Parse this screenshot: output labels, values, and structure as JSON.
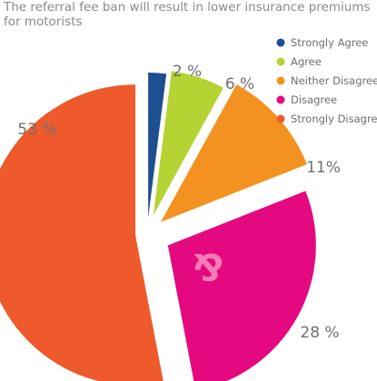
{
  "chart_data": {
    "type": "pie",
    "title": "The referral fee ban will result in lower insurance premiums for motorists",
    "categories": [
      "Strongly Agree",
      "Agree",
      "Neither Disagree",
      "Disagree",
      "Strongly Disagree"
    ],
    "values": [
      2,
      6,
      11,
      28,
      53
    ],
    "labels": [
      "2 %",
      "6 %",
      "11%",
      "28 %",
      "53 %"
    ],
    "colors": [
      "#1d4f91",
      "#b6d334",
      "#f39220",
      "#e5097f",
      "#ee5a2b"
    ],
    "legend_position": "top-right",
    "watermark": "&"
  }
}
